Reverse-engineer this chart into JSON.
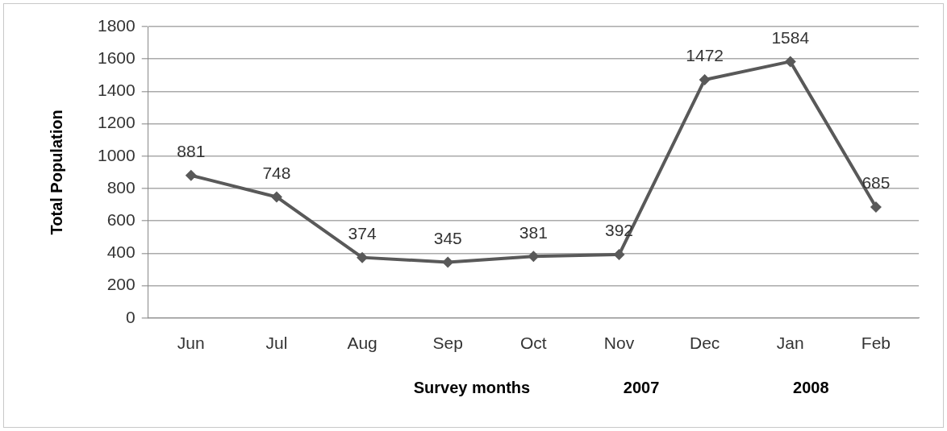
{
  "chart_data": {
    "type": "line",
    "ylabel": "Total Population",
    "xlabel": "Survey months",
    "annotations": [
      "2007",
      "2008"
    ],
    "categories": [
      "Jun",
      "Jul",
      "Aug",
      "Sep",
      "Oct",
      "Nov",
      "Dec",
      "Jan",
      "Feb"
    ],
    "series": [
      {
        "color": "#595959",
        "values": [
          881,
          748,
          374,
          345,
          381,
          392,
          1472,
          1584,
          685
        ]
      }
    ],
    "ylim": [
      0,
      1800
    ],
    "yticks": [
      0,
      200,
      400,
      600,
      800,
      1000,
      1200,
      1400,
      1600,
      1800
    ],
    "grid": "y",
    "legend": false,
    "marker": "diamond",
    "line_style": "solid",
    "data_labels": true
  }
}
